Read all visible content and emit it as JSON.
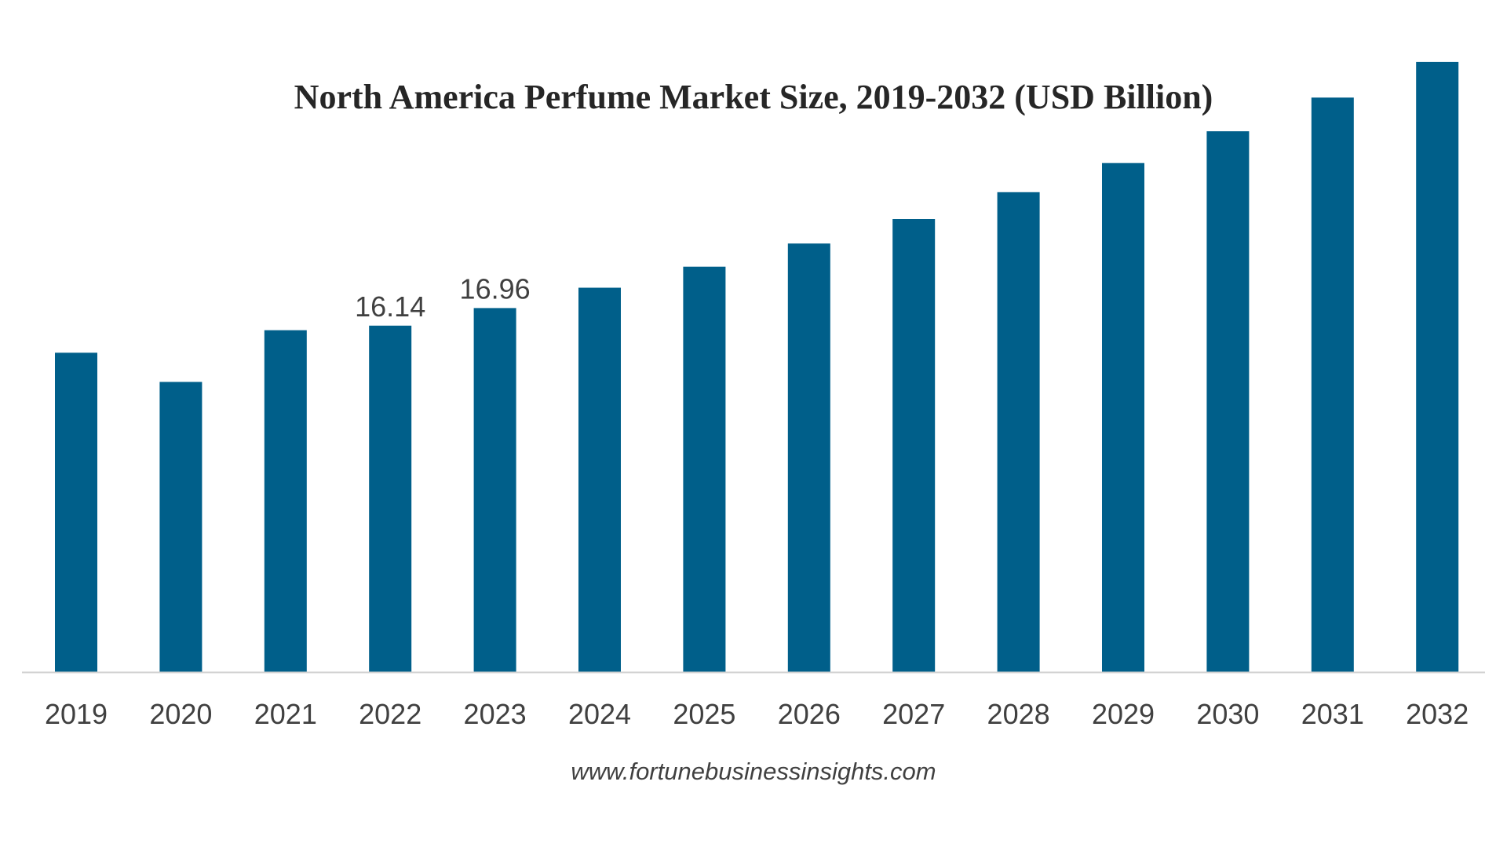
{
  "chart_data": {
    "type": "bar",
    "title": "North America Perfume Market Size, 2019-2032 (USD Billion)",
    "categories": [
      "2019",
      "2020",
      "2021",
      "2022",
      "2023",
      "2024",
      "2025",
      "2026",
      "2027",
      "2028",
      "2029",
      "2030",
      "2031",
      "2032"
    ],
    "values": [
      14.88,
      13.52,
      15.93,
      16.14,
      16.96,
      17.91,
      18.89,
      19.97,
      21.11,
      22.36,
      23.72,
      25.2,
      26.77,
      28.43
    ],
    "data_labels": [
      {
        "index": 3,
        "text": "16.14"
      },
      {
        "index": 4,
        "text": "16.96"
      }
    ],
    "bar_color": "#005f8a",
    "axis_color": "#d0d0d0",
    "ylim": [
      0,
      30
    ],
    "grid": false,
    "legend": "none",
    "xlabel": "",
    "ylabel": ""
  },
  "footer": {
    "source": "www.fortunebusinessinsights.com"
  }
}
